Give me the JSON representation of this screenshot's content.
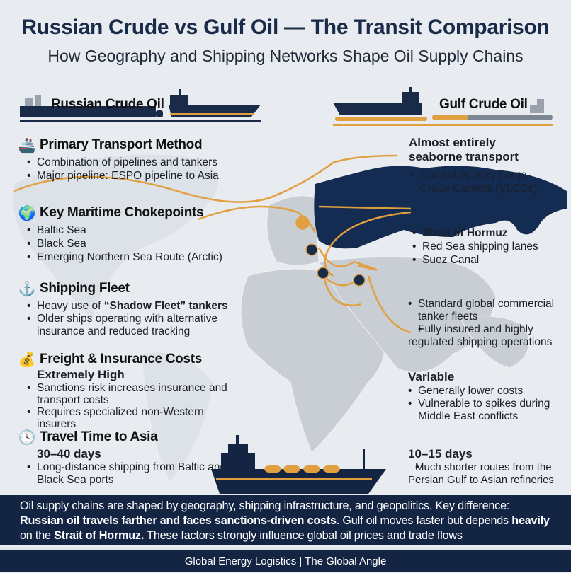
{
  "header": {
    "title": "Russian Crude vs Gulf Oil — The Transit Comparison",
    "subtitle": "How Geography and Shipping Networks Shape Oil Supply Chains"
  },
  "colors": {
    "navy": "#1a2b4a",
    "gold": "#e0a040",
    "background": "#e8ecf0",
    "land": "#c9ced5"
  },
  "left": {
    "label": "Russian Crude Oil",
    "sections": [
      {
        "icon": "ship-icon",
        "title": "Primary Transport Method",
        "bullets": [
          "Combination of pipelines and tankers",
          "Major pipeline: ESPO pipeline to Asia"
        ]
      },
      {
        "icon": "globe-icon",
        "title": "Key Maritime Chokepoints",
        "bullets": [
          "Baltic Sea",
          "Black Sea",
          "Emerging Northern Sea Route (Arctic)"
        ]
      },
      {
        "icon": "anchor-icon",
        "title": "Shipping Fleet",
        "bullet1_pre": "Heavy use of ",
        "bullet1_bold": "“Shadow Fleet” tankers",
        "bullets": [
          "Older ships operating with alternative insurance and reduced tracking"
        ]
      },
      {
        "icon": "money-bag-icon",
        "title": "Freight & Insurance Costs",
        "highlight": "Extremely High",
        "bullets": [
          "Sanctions risk increases insurance and transport costs",
          "Requires specialized non-Western insurers"
        ]
      },
      {
        "icon": "clock-icon",
        "title": "Travel Time to Asia",
        "highlight": "30–40 days",
        "bullets": [
          "Long-distance shipping from Baltic and Black Sea ports"
        ]
      }
    ]
  },
  "right": {
    "label": "Gulf Crude Oil",
    "transport_title": "Almost entirely seaborne transport",
    "transport_bullets": [
      "Carried by Very Large Crude Carriers (VLCCs)"
    ],
    "chokepoints": [
      "Strait of Hormuz",
      "Red Sea shipping lanes",
      "Suez Canal"
    ],
    "fleet": [
      "Standard global commercial tanker fleets",
      "Fully insured and highly regulated shipping operations"
    ],
    "cost_highlight": "Variable",
    "cost_bullets": [
      "Generally lower costs",
      "Vulnerable to spikes during Middle East conflicts"
    ],
    "time_highlight": "10–15 days",
    "time_bullets": [
      "Much shorter routes from the Persian Gulf to Asian refineries"
    ]
  },
  "summary": {
    "s1": "Oil supply chains are shaped by geography, shipping infrastructure, and geopolitics. Key difference: ",
    "b1": "Russian oil travels farther and faces sanctions-driven costs",
    "s2": ". Gulf oil moves faster but depends ",
    "b2": "heavily",
    "s3": " on the ",
    "b3": "Strait of Hormuz.",
    "s4": " These factors strongly influence global oil prices and trade flows"
  },
  "footer": "Global Energy Logistics | The Global Angle"
}
